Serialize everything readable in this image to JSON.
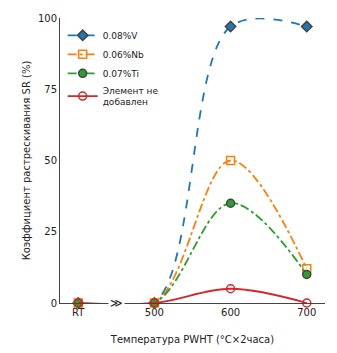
{
  "chart_data": {
    "type": "line",
    "xlabel": "Температура PWHT (°C×2часа)",
    "ylabel": "Коэффициент растрескивания SR (%)",
    "categories": [
      "RT",
      "500",
      "600",
      "700"
    ],
    "series": [
      {
        "name": "0.08%V",
        "values": [
          0,
          0,
          97,
          97
        ],
        "marker": "diamond",
        "line_style": "dash"
      },
      {
        "name": "0.06%Nb",
        "values": [
          0,
          0,
          50,
          12
        ],
        "marker": "square-open",
        "line_style": "dashdot"
      },
      {
        "name": "0.07%Ti",
        "values": [
          0,
          0,
          35,
          10
        ],
        "marker": "circle",
        "line_style": "dashdot"
      },
      {
        "name": "Элемент не\nдобавлен",
        "values": [
          0,
          0,
          5,
          0
        ],
        "marker": "circle-open",
        "line_style": "solid"
      }
    ],
    "ylim": [
      0,
      100
    ],
    "yticks": [
      0,
      25,
      50,
      75,
      100
    ],
    "grid": false,
    "legend": "upper left",
    "annotations": [
      {
        "text": "≫"
      }
    ]
  }
}
